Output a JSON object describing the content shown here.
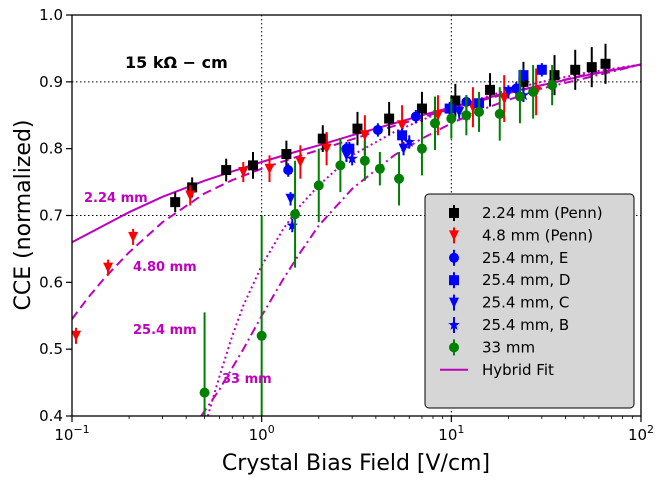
{
  "chart_data": {
    "type": "scatter",
    "title": "",
    "xlabel": "Crystal Bias Field [V/cm]",
    "ylabel": "CCE (normalized)",
    "xscale": "log",
    "xlim": [
      0.1,
      100
    ],
    "ylim": [
      0.4,
      1.0
    ],
    "x_ticks": [
      0.1,
      1,
      10,
      100
    ],
    "x_tick_labels": [
      {
        "base": "10",
        "exp": "−1"
      },
      {
        "base": "10",
        "exp": "0"
      },
      {
        "base": "10",
        "exp": "1"
      },
      {
        "base": "10",
        "exp": "2"
      }
    ],
    "y_ticks": [
      0.4,
      0.5,
      0.6,
      0.7,
      0.8,
      0.9,
      1.0
    ],
    "y_tick_labels": [
      "0.4",
      "0.5",
      "0.6",
      "0.7",
      "0.8",
      "0.9",
      "1.0"
    ],
    "grid": "dotted",
    "grid_x": [
      1,
      10
    ],
    "grid_y": [
      0.7,
      0.9
    ],
    "annotations": [
      {
        "id": "resistivity",
        "text": "15 kΩ − cm",
        "color": "#000000"
      },
      {
        "id": "fit-2-24",
        "text": "2.24 mm",
        "color": "#bf00bf"
      },
      {
        "id": "fit-4-80",
        "text": "4.80 mm",
        "color": "#bf00bf"
      },
      {
        "id": "fit-25-4",
        "text": "25.4 mm",
        "color": "#bf00bf"
      },
      {
        "id": "fit-33",
        "text": "33 mm",
        "color": "#bf00bf"
      }
    ],
    "legend_position": "lower-right",
    "series": [
      {
        "name": "2.24 mm (Penn)",
        "marker": "square",
        "color": "#000000",
        "err_color": "#000000",
        "points": [
          [
            0.35,
            0.72,
            0.015
          ],
          [
            0.43,
            0.742,
            0.015
          ],
          [
            0.65,
            0.768,
            0.017
          ],
          [
            0.9,
            0.775,
            0.02
          ],
          [
            1.35,
            0.792,
            0.02
          ],
          [
            2.1,
            0.815,
            0.02
          ],
          [
            3.2,
            0.83,
            0.025
          ],
          [
            4.7,
            0.845,
            0.025
          ],
          [
            7,
            0.86,
            0.025
          ],
          [
            10.5,
            0.872,
            0.025
          ],
          [
            16,
            0.888,
            0.025
          ],
          [
            24,
            0.9,
            0.03
          ],
          [
            35,
            0.91,
            0.03
          ],
          [
            45,
            0.918,
            0.03
          ],
          [
            55,
            0.922,
            0.03
          ],
          [
            65,
            0.927,
            0.03
          ]
        ]
      },
      {
        "name": "4.8 mm (Penn)",
        "marker": "triangle-down",
        "color": "#ff0000",
        "err_color": "#ff0000",
        "points": [
          [
            0.105,
            0.52,
            0.012
          ],
          [
            0.155,
            0.622,
            0.012
          ],
          [
            0.21,
            0.668,
            0.012
          ],
          [
            0.42,
            0.73,
            0.015
          ],
          [
            0.8,
            0.765,
            0.015
          ],
          [
            1.1,
            0.77,
            0.02
          ],
          [
            1.6,
            0.78,
            0.025
          ],
          [
            2.2,
            0.8,
            0.025
          ],
          [
            3.5,
            0.82,
            0.03
          ],
          [
            5.5,
            0.835,
            0.03
          ],
          [
            8.5,
            0.85,
            0.03
          ],
          [
            13,
            0.862,
            0.03
          ],
          [
            19,
            0.875,
            0.035
          ],
          [
            28,
            0.885,
            0.035
          ]
        ]
      },
      {
        "name": "25.4 mm, E",
        "marker": "circle",
        "color": "#0000ff",
        "err_color": "#0000ff",
        "points": [
          [
            1.38,
            0.768,
            0.01
          ],
          [
            2.8,
            0.8,
            0.01
          ],
          [
            4.1,
            0.828,
            0.01
          ],
          [
            6.5,
            0.848,
            0.01
          ],
          [
            12,
            0.87,
            0.01
          ],
          [
            22,
            0.89,
            0.01
          ]
        ]
      },
      {
        "name": "25.4 mm, D",
        "marker": "square",
        "color": "#0000ff",
        "err_color": "#0000ff",
        "points": [
          [
            2.9,
            0.8,
            0.01
          ],
          [
            5.5,
            0.82,
            0.01
          ],
          [
            9.8,
            0.86,
            0.01
          ],
          [
            14,
            0.868,
            0.01
          ],
          [
            24,
            0.91,
            0.01
          ],
          [
            30,
            0.918,
            0.01
          ]
        ]
      },
      {
        "name": "25.4 mm, C",
        "marker": "triangle-down",
        "color": "#0000ff",
        "err_color": "#0000ff",
        "points": [
          [
            1.42,
            0.725,
            0.01
          ],
          [
            2.8,
            0.79,
            0.01
          ],
          [
            5.6,
            0.8,
            0.01
          ],
          [
            11,
            0.855,
            0.01
          ],
          [
            20,
            0.885,
            0.01
          ]
        ]
      },
      {
        "name": "25.4 mm, B",
        "marker": "star",
        "color": "#0000ff",
        "err_color": "#0000ff",
        "points": [
          [
            1.45,
            0.685,
            0.01
          ],
          [
            3,
            0.785,
            0.01
          ],
          [
            6,
            0.81,
            0.01
          ],
          [
            12,
            0.85,
            0.01
          ],
          [
            24,
            0.88,
            0.01
          ]
        ]
      },
      {
        "name": "33 mm",
        "marker": "circle",
        "color": "#008000",
        "err_color": "#008000",
        "points": [
          [
            0.5,
            0.435,
            0.12
          ],
          [
            1.0,
            0.52,
            0.18
          ],
          [
            1.5,
            0.702,
            0.08
          ],
          [
            2.0,
            0.745,
            0.055
          ],
          [
            2.6,
            0.775,
            0.04
          ],
          [
            3.5,
            0.782,
            0.03
          ],
          [
            4.2,
            0.77,
            0.025
          ],
          [
            5.3,
            0.755,
            0.04
          ],
          [
            7,
            0.8,
            0.04
          ],
          [
            8.2,
            0.838,
            0.04
          ],
          [
            10,
            0.845,
            0.03
          ],
          [
            12,
            0.85,
            0.03
          ],
          [
            14,
            0.855,
            0.03
          ],
          [
            18,
            0.852,
            0.04
          ],
          [
            23,
            0.878,
            0.04
          ],
          [
            27,
            0.885,
            0.04
          ],
          [
            34,
            0.895,
            0.03
          ]
        ]
      }
    ],
    "fit_curves": [
      {
        "name": "Hybrid Fit",
        "label": "2.24 mm",
        "style": "solid",
        "color": "#bf00bf",
        "x": [
          0.1,
          0.2,
          0.3,
          0.5,
          0.7,
          1,
          1.5,
          2,
          3,
          5,
          7,
          10,
          15,
          20,
          30,
          50,
          70,
          100
        ],
        "y": [
          0.66,
          0.705,
          0.728,
          0.752,
          0.766,
          0.78,
          0.795,
          0.805,
          0.82,
          0.838,
          0.85,
          0.862,
          0.875,
          0.884,
          0.895,
          0.909,
          0.917,
          0.926
        ]
      },
      {
        "name": "4.80 mm fit",
        "label": "4.80 mm",
        "style": "dashed",
        "color": "#bf00bf",
        "x": [
          0.1,
          0.12,
          0.15,
          0.2,
          0.3,
          0.5,
          0.7,
          1,
          1.5,
          2,
          3,
          5,
          10,
          20,
          50,
          100
        ],
        "y": [
          0.545,
          0.575,
          0.608,
          0.645,
          0.69,
          0.733,
          0.753,
          0.77,
          0.787,
          0.798,
          0.814,
          0.834,
          0.86,
          0.883,
          0.91,
          0.926
        ]
      },
      {
        "name": "25.4 mm fit",
        "label": "25.4 mm",
        "style": "dotted",
        "color": "#bf00bf",
        "x": [
          0.52,
          0.6,
          0.7,
          0.8,
          1,
          1.3,
          1.6,
          2,
          3,
          5,
          7,
          10,
          15,
          20,
          30,
          50,
          100
        ],
        "y": [
          0.4,
          0.46,
          0.52,
          0.565,
          0.625,
          0.68,
          0.715,
          0.745,
          0.79,
          0.825,
          0.843,
          0.86,
          0.877,
          0.888,
          0.9,
          0.913,
          0.926
        ]
      },
      {
        "name": "33 mm fit",
        "label": "33 mm",
        "style": "dashdot",
        "color": "#bf00bf",
        "x": [
          0.48,
          0.6,
          0.8,
          1,
          1.3,
          1.6,
          2,
          3,
          5,
          7,
          10,
          15,
          20,
          30,
          50,
          100
        ],
        "y": [
          0.4,
          0.44,
          0.5,
          0.55,
          0.605,
          0.645,
          0.685,
          0.74,
          0.79,
          0.815,
          0.838,
          0.86,
          0.873,
          0.89,
          0.905,
          0.926
        ]
      }
    ]
  }
}
